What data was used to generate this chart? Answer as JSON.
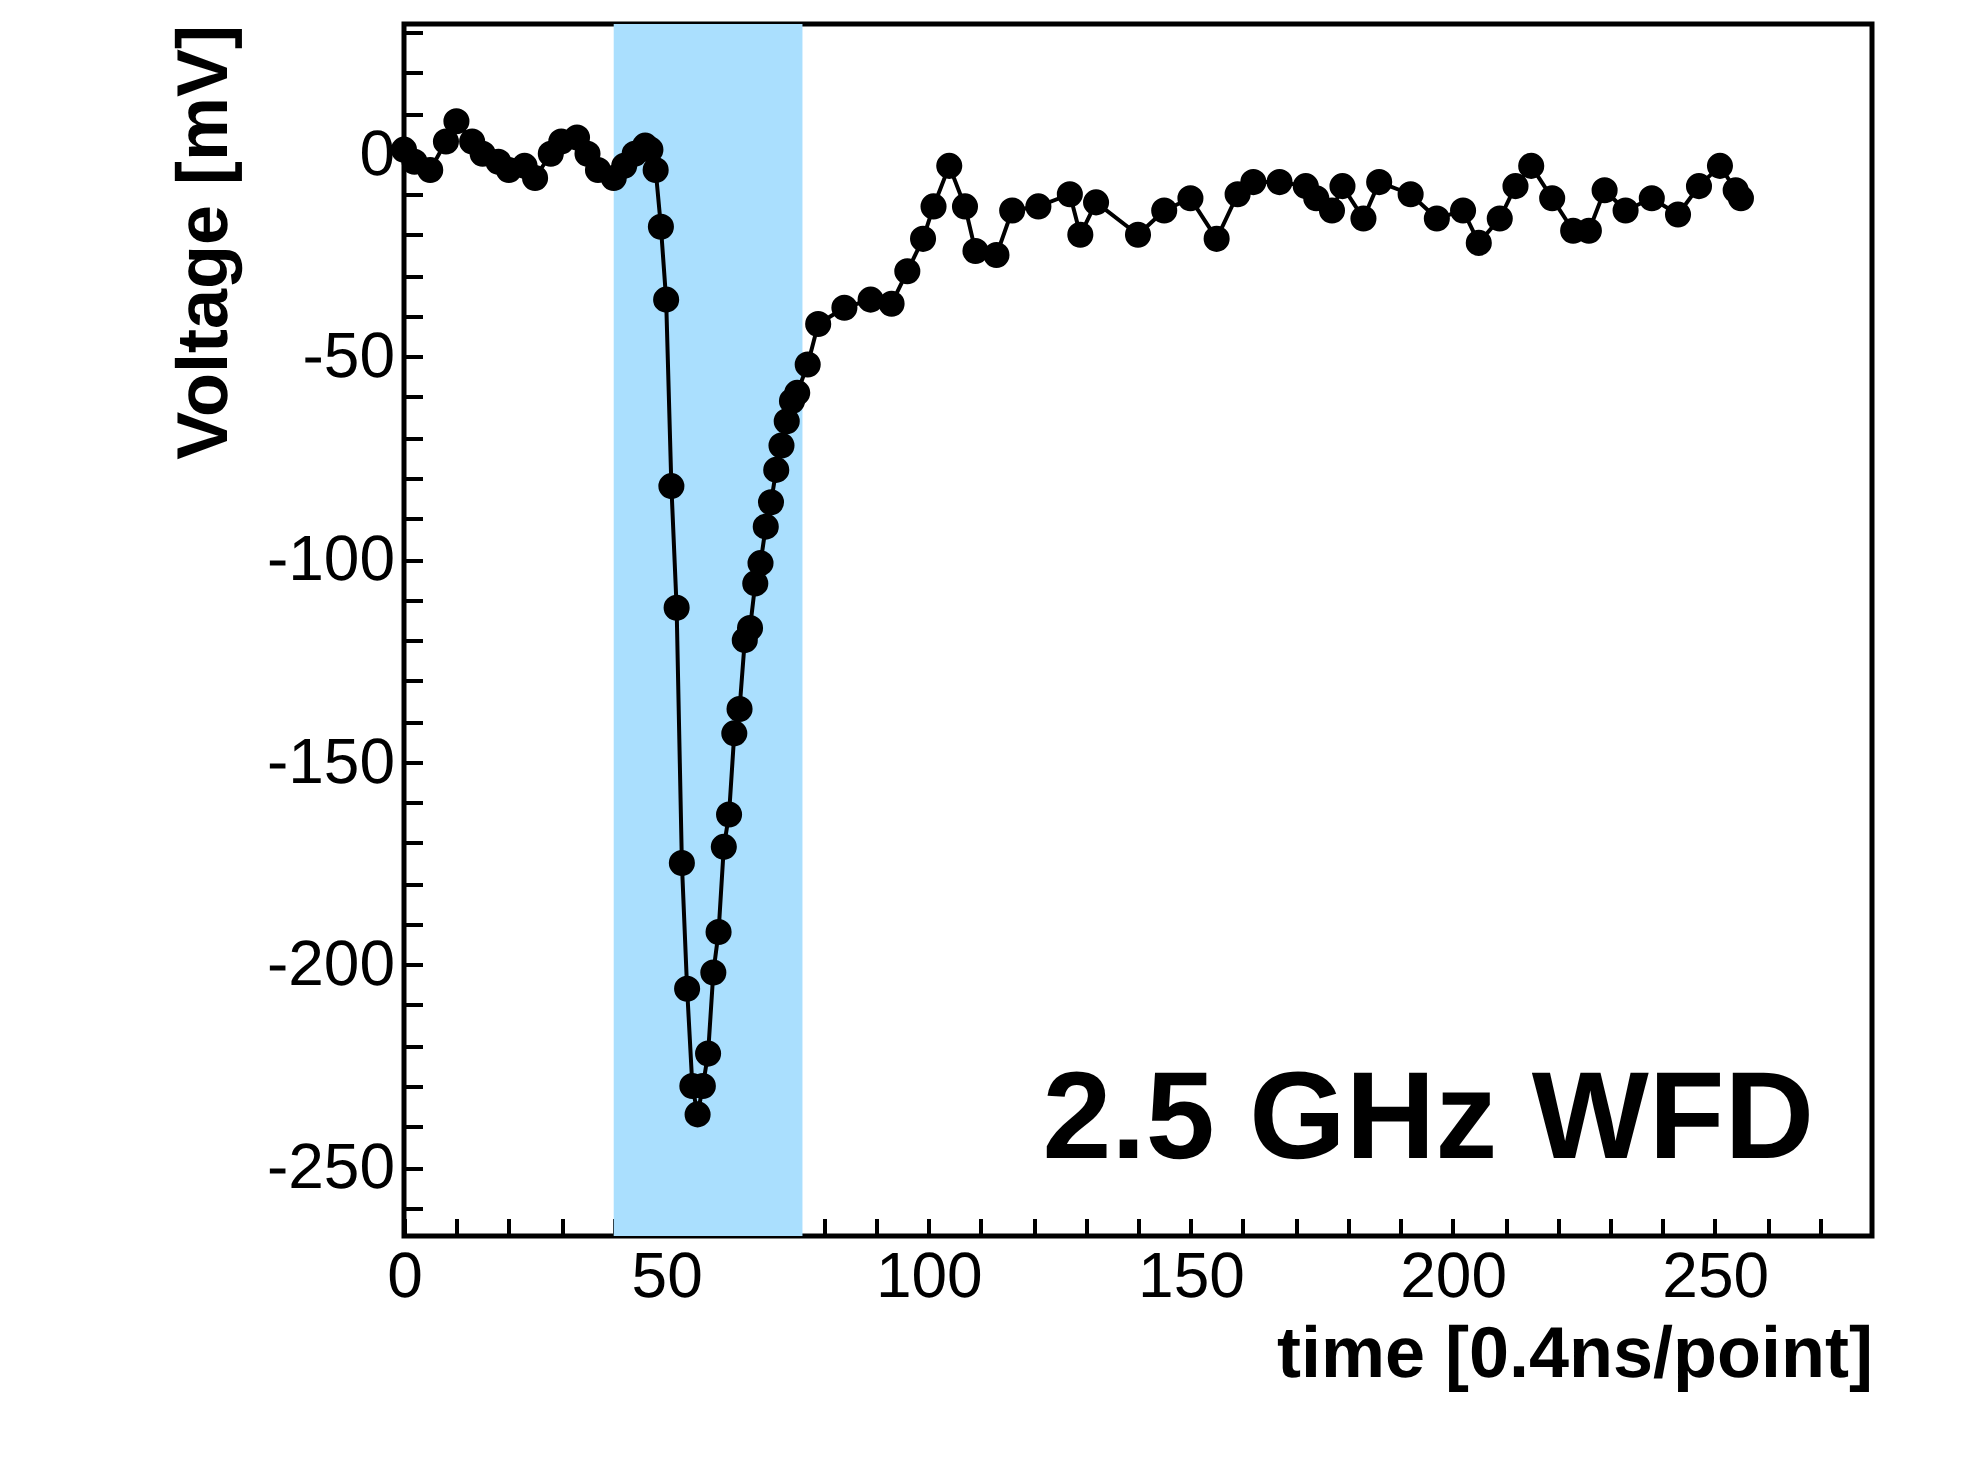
{
  "chart_data": {
    "type": "line",
    "xlabel": "time [0.4ns/point]",
    "ylabel": "Voltage [mV]",
    "annotations": [
      "2.5 GHz WFD"
    ],
    "xlim": [
      0,
      280
    ],
    "ylim": [
      -267,
      32
    ],
    "xticks": [
      0,
      {
        "value": 10,
        "label": null
      },
      {
        "value": 20,
        "label": null
      },
      {
        "value": 30,
        "label": null
      },
      {
        "value": 40,
        "label": null
      },
      50,
      {
        "value": 60,
        "label": null
      },
      {
        "value": 70,
        "label": null
      },
      {
        "value": 80,
        "label": null
      },
      {
        "value": 90,
        "label": null
      },
      100,
      {
        "value": 110,
        "label": null
      },
      {
        "value": 120,
        "label": null
      },
      {
        "value": 130,
        "label": null
      },
      {
        "value": 140,
        "label": null
      },
      150,
      {
        "value": 160,
        "label": null
      },
      {
        "value": 170,
        "label": null
      },
      {
        "value": 180,
        "label": null
      },
      {
        "value": 190,
        "label": null
      },
      200,
      {
        "value": 210,
        "label": null
      },
      {
        "value": 220,
        "label": null
      },
      {
        "value": 230,
        "label": null
      },
      {
        "value": 240,
        "label": null
      },
      250,
      {
        "value": 260,
        "label": null
      },
      {
        "value": 270,
        "label": null
      }
    ],
    "yticks": [
      {
        "value": -260,
        "label": null
      },
      -250,
      {
        "value": -240,
        "label": null
      },
      {
        "value": -230,
        "label": null
      },
      {
        "value": -220,
        "label": null
      },
      {
        "value": -210,
        "label": null
      },
      -200,
      {
        "value": -190,
        "label": null
      },
      {
        "value": -180,
        "label": null
      },
      {
        "value": -170,
        "label": null
      },
      {
        "value": -160,
        "label": null
      },
      -150,
      {
        "value": -140,
        "label": null
      },
      {
        "value": -130,
        "label": null
      },
      {
        "value": -120,
        "label": null
      },
      {
        "value": -110,
        "label": null
      },
      -100,
      {
        "value": -90,
        "label": null
      },
      {
        "value": -80,
        "label": null
      },
      {
        "value": -70,
        "label": null
      },
      {
        "value": -60,
        "label": null
      },
      -50,
      {
        "value": -40,
        "label": null
      },
      {
        "value": -30,
        "label": null
      },
      {
        "value": -20,
        "label": null
      },
      {
        "value": -10,
        "label": null
      },
      0,
      {
        "value": 10,
        "label": null
      },
      {
        "value": 20,
        "label": null
      },
      {
        "value": 30,
        "label": null
      }
    ],
    "bands": [
      {
        "axis": "x",
        "from": 40,
        "to": 76,
        "color": "#aadffe"
      }
    ],
    "marker": "circle",
    "line_style": "solid",
    "series": [
      {
        "color": "#000000",
        "x": [
          0,
          2,
          5,
          8,
          10,
          13,
          15,
          18,
          20,
          23,
          25,
          28,
          30,
          33,
          35,
          37,
          40,
          42,
          44,
          46,
          47,
          48,
          49,
          50,
          51,
          52,
          53,
          54,
          55,
          56,
          57,
          58,
          59,
          60,
          61,
          62,
          63,
          64,
          65,
          66,
          67,
          68,
          69,
          70,
          71,
          72,
          73,
          74,
          75,
          77,
          79,
          84,
          89,
          93,
          96,
          99,
          101,
          104,
          107,
          109,
          113,
          116,
          121,
          127,
          129,
          132,
          140,
          145,
          150,
          155,
          159,
          162,
          167,
          172,
          174,
          177,
          179,
          183,
          186,
          192,
          197,
          202,
          205,
          209,
          212,
          215,
          219,
          223,
          226,
          229,
          233,
          238,
          243,
          247,
          251,
          254,
          255
        ],
        "values": [
          1,
          -2,
          -4,
          3,
          8,
          3,
          0,
          -2,
          -4,
          -3,
          -6,
          0,
          3,
          4,
          0,
          -4,
          -6,
          -3,
          0,
          2,
          1,
          -4,
          -18,
          -36,
          -82,
          -112,
          -175,
          -206,
          -230,
          -237,
          -230,
          -222,
          -202,
          -192,
          -171,
          -163,
          -143,
          -137,
          -120,
          -117,
          -106,
          -101,
          -92,
          -86,
          -78,
          -72,
          -66,
          -61,
          -59,
          -52,
          -42,
          -38,
          -36,
          -37,
          -29,
          -21,
          -13,
          -3,
          -13,
          -24,
          -25,
          -14,
          -13,
          -10,
          -20,
          -12,
          -20,
          -14,
          -11,
          -21,
          -10,
          -7,
          -7,
          -8,
          -11,
          -14,
          -8,
          -16,
          -7,
          -10,
          -16,
          -14,
          -22,
          -16,
          -8,
          -3,
          -11,
          -19,
          -19,
          -9,
          -14,
          -11,
          -15,
          -8,
          -3,
          -9,
          -11
        ]
      }
    ]
  }
}
